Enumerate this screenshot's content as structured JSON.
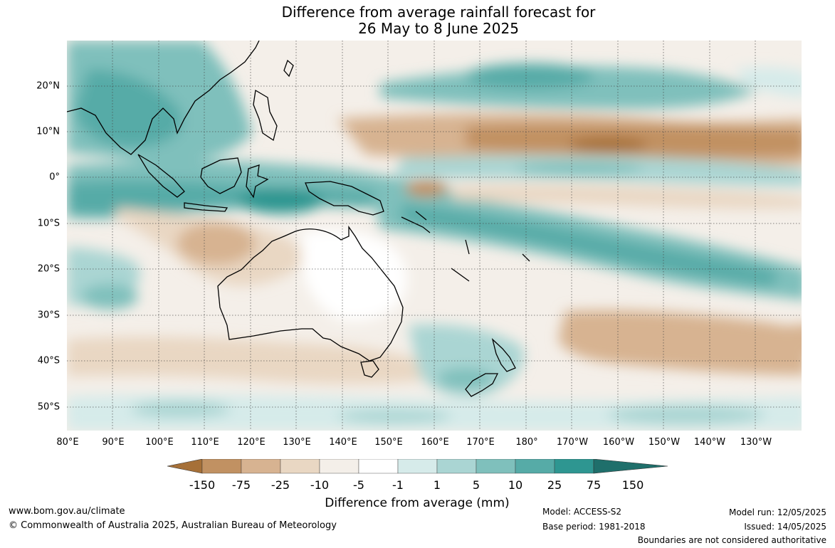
{
  "title": {
    "line1": "Difference from average rainfall forecast for",
    "line2": "26 May to 8 June 2025"
  },
  "map": {
    "projection": "equirectangular",
    "lat_labels": [
      "20°N",
      "10°N",
      "0°",
      "10°S",
      "20°S",
      "30°S",
      "40°S",
      "50°S"
    ],
    "lon_labels": [
      "80°E",
      "90°E",
      "100°E",
      "110°E",
      "120°E",
      "130°E",
      "140°E",
      "150°E",
      "160°E",
      "170°E",
      "180°",
      "170°W",
      "160°W",
      "150°W",
      "140°W",
      "130°W"
    ],
    "gridlines": "dotted",
    "coastlines": "black"
  },
  "colorbar": {
    "title": "Difference from average (mm)",
    "tick_labels": [
      "-150",
      "-75",
      "-25",
      "-10",
      "-5",
      "-1",
      "1",
      "5",
      "10",
      "25",
      "75",
      "150"
    ],
    "colors": [
      "#a67038",
      "#c19162",
      "#d7b391",
      "#e9d7c3",
      "#f4efe9",
      "#ffffff",
      "#d6ebea",
      "#aad5d3",
      "#7fc0bc",
      "#56aba7",
      "#2e9691",
      "#1f6f6b"
    ],
    "extend": "both"
  },
  "footer": {
    "website": "www.bom.gov.au/climate",
    "copyright": "© Commonwealth of Australia 2025, Australian Bureau of Meteorology",
    "model": "Model: ACCESS-S2",
    "base_period": "Base period: 1981-2018",
    "model_run": "Model run: 12/05/2025",
    "issued": "Issued: 14/05/2025",
    "disclaimer": "Boundaries are not considered authoritative"
  }
}
